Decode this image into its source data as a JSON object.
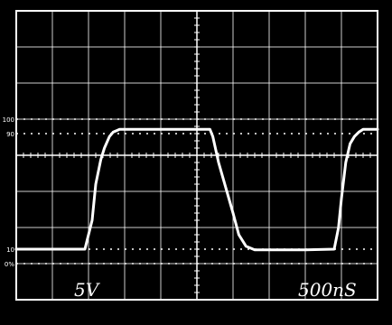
{
  "chart_data": {
    "type": "line",
    "title": "",
    "xlabel": "",
    "ylabel": "",
    "x_unit": "ns",
    "y_unit": "%",
    "x_divisions": 10,
    "y_divisions": 8,
    "grid": true,
    "xlim": [
      0,
      5000
    ],
    "ylim": [
      -25,
      175
    ],
    "reference_levels": [
      {
        "label": "100",
        "value": 100
      },
      {
        "label": "90",
        "value": 90
      },
      {
        "label": "10",
        "value": 10
      },
      {
        "label": "0%",
        "value": 0
      }
    ],
    "settings": {
      "volts_per_div": "5V",
      "time_per_div": "500nS"
    },
    "series": [
      {
        "x": [
          0,
          950,
          1050,
          1100,
          1170,
          1220,
          1290,
          1340,
          1430,
          1550,
          1750,
          2000,
          2500,
          2680,
          2720,
          2800,
          3000,
          3080,
          3180,
          3300,
          3450,
          3600,
          4000,
          4400,
          4460,
          4500,
          4560,
          4620,
          4680,
          4740,
          4800,
          4880,
          5000
        ],
        "y": [
          10,
          10,
          30,
          55,
          72,
          80,
          88,
          91,
          93,
          93,
          93,
          93,
          93,
          93,
          88,
          70,
          35,
          20,
          12,
          9.5,
          9.5,
          9.5,
          9.5,
          10,
          25,
          45,
          70,
          83,
          88,
          91,
          93,
          93,
          93
        ]
      }
    ]
  },
  "colors": {
    "screen": "#000000",
    "trace": "#ffffff",
    "grid": "#ffffff"
  }
}
